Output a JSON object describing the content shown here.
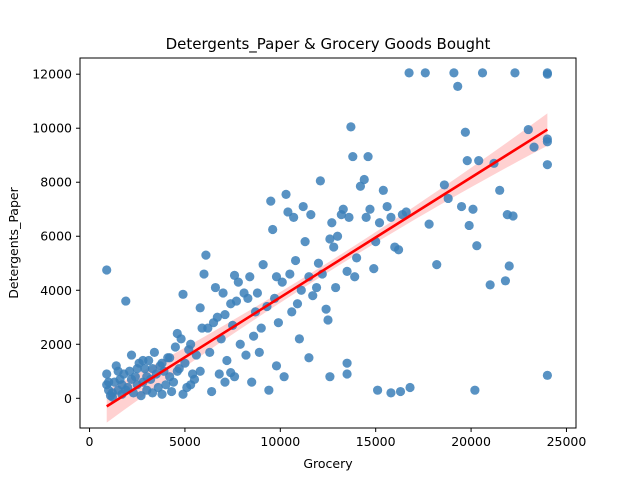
{
  "chart_data": {
    "type": "scatter",
    "title": "Detergents_Paper & Grocery Goods Bought",
    "xlabel": "Grocery",
    "ylabel": "Detergents_Paper",
    "xlim": [
      -500,
      25500
    ],
    "ylim": [
      -1100,
      12600
    ],
    "xticks": [
      0,
      5000,
      10000,
      15000,
      20000,
      25000
    ],
    "xtick_labels": [
      "0",
      "5000",
      "10000",
      "15000",
      "20000",
      "25000"
    ],
    "yticks": [
      0,
      2000,
      4000,
      6000,
      8000,
      10000,
      12000
    ],
    "ytick_labels": [
      "0",
      "2000",
      "4000",
      "6000",
      "8000",
      "10000",
      "12000"
    ],
    "grid": false,
    "legend": "none",
    "colors": {
      "points": "#3b7fb9",
      "regression": "#ff0000",
      "ci_band": "#ffb3b3"
    },
    "regression": {
      "x": [
        900,
        24000
      ],
      "y": [
        -300,
        9950
      ],
      "ci_halfwidth": [
        180,
        600
      ]
    },
    "points": [
      [
        900,
        4750
      ],
      [
        1900,
        3600
      ],
      [
        900,
        900
      ],
      [
        900,
        500
      ],
      [
        1000,
        300
      ],
      [
        1100,
        100
      ],
      [
        1200,
        50
      ],
      [
        1300,
        600
      ],
      [
        1400,
        1200
      ],
      [
        1500,
        300
      ],
      [
        1600,
        700
      ],
      [
        1700,
        150
      ],
      [
        1800,
        900
      ],
      [
        2000,
        400
      ],
      [
        2100,
        1000
      ],
      [
        2200,
        1600
      ],
      [
        2300,
        200
      ],
      [
        2400,
        800
      ],
      [
        2500,
        500
      ],
      [
        2600,
        1300
      ],
      [
        2700,
        100
      ],
      [
        2800,
        600
      ],
      [
        2900,
        1100
      ],
      [
        3000,
        300
      ],
      [
        3100,
        1400
      ],
      [
        3200,
        700
      ],
      [
        3300,
        200
      ],
      [
        3400,
        1700
      ],
      [
        3500,
        900
      ],
      [
        3600,
        400
      ],
      [
        3700,
        1200
      ],
      [
        3800,
        150
      ],
      [
        3900,
        1000
      ],
      [
        4000,
        500
      ],
      [
        4100,
        1500
      ],
      [
        4200,
        800
      ],
      [
        4300,
        250
      ],
      [
        4400,
        600
      ],
      [
        4500,
        1900
      ],
      [
        4600,
        2400
      ],
      [
        4700,
        1100
      ],
      [
        4800,
        2200
      ],
      [
        4900,
        3850
      ],
      [
        5000,
        1300
      ],
      [
        5100,
        400
      ],
      [
        5200,
        1800
      ],
      [
        5300,
        2000
      ],
      [
        5400,
        900
      ],
      [
        5500,
        700
      ],
      [
        5600,
        1600
      ],
      [
        5800,
        3350
      ],
      [
        5900,
        2600
      ],
      [
        6000,
        4600
      ],
      [
        6100,
        5300
      ],
      [
        6200,
        2600
      ],
      [
        6300,
        1700
      ],
      [
        6500,
        2800
      ],
      [
        6600,
        4100
      ],
      [
        6700,
        3000
      ],
      [
        6800,
        900
      ],
      [
        6900,
        2200
      ],
      [
        7000,
        3900
      ],
      [
        7100,
        3100
      ],
      [
        7200,
        1400
      ],
      [
        7400,
        3500
      ],
      [
        7500,
        2700
      ],
      [
        7600,
        4550
      ],
      [
        7700,
        3600
      ],
      [
        7800,
        4300
      ],
      [
        7900,
        2000
      ],
      [
        8100,
        3900
      ],
      [
        8200,
        1600
      ],
      [
        8300,
        3700
      ],
      [
        8400,
        4500
      ],
      [
        8600,
        2300
      ],
      [
        8700,
        3200
      ],
      [
        8800,
        3900
      ],
      [
        8900,
        1700
      ],
      [
        9000,
        2600
      ],
      [
        9100,
        4950
      ],
      [
        9300,
        3400
      ],
      [
        9500,
        7300
      ],
      [
        9600,
        6250
      ],
      [
        9700,
        3700
      ],
      [
        9800,
        4500
      ],
      [
        9900,
        2800
      ],
      [
        10100,
        4300
      ],
      [
        10300,
        7550
      ],
      [
        10400,
        6900
      ],
      [
        10500,
        4600
      ],
      [
        10600,
        3200
      ],
      [
        10700,
        6700
      ],
      [
        10800,
        5100
      ],
      [
        10900,
        3500
      ],
      [
        11000,
        2200
      ],
      [
        11100,
        4000
      ],
      [
        11200,
        7100
      ],
      [
        11300,
        5800
      ],
      [
        11500,
        4500
      ],
      [
        11600,
        6800
      ],
      [
        11700,
        3800
      ],
      [
        11900,
        4100
      ],
      [
        12000,
        5000
      ],
      [
        12100,
        8050
      ],
      [
        12200,
        4600
      ],
      [
        12400,
        3300
      ],
      [
        12500,
        2900
      ],
      [
        12600,
        5900
      ],
      [
        12700,
        6500
      ],
      [
        12800,
        5600
      ],
      [
        12900,
        4100
      ],
      [
        13000,
        6000
      ],
      [
        13200,
        6800
      ],
      [
        13300,
        7000
      ],
      [
        13500,
        4700
      ],
      [
        13600,
        6700
      ],
      [
        13700,
        10050
      ],
      [
        13800,
        8950
      ],
      [
        13900,
        4500
      ],
      [
        14000,
        5200
      ],
      [
        14200,
        7850
      ],
      [
        14400,
        8100
      ],
      [
        14500,
        6700
      ],
      [
        14600,
        8950
      ],
      [
        14700,
        7000
      ],
      [
        14900,
        4800
      ],
      [
        15000,
        5800
      ],
      [
        15200,
        6500
      ],
      [
        15400,
        7700
      ],
      [
        15600,
        7100
      ],
      [
        15800,
        6700
      ],
      [
        16000,
        5600
      ],
      [
        16200,
        5500
      ],
      [
        16400,
        6800
      ],
      [
        16600,
        6900
      ],
      [
        16750,
        12050
      ],
      [
        17600,
        12050
      ],
      [
        17800,
        6450
      ],
      [
        18200,
        4950
      ],
      [
        18600,
        7900
      ],
      [
        18800,
        7400
      ],
      [
        19100,
        12050
      ],
      [
        19300,
        11550
      ],
      [
        19500,
        7100
      ],
      [
        19700,
        9850
      ],
      [
        19800,
        8800
      ],
      [
        19900,
        6400
      ],
      [
        20100,
        7000
      ],
      [
        20300,
        5650
      ],
      [
        20400,
        8800
      ],
      [
        20600,
        12050
      ],
      [
        21000,
        4200
      ],
      [
        21200,
        8700
      ],
      [
        21500,
        7700
      ],
      [
        21800,
        4350
      ],
      [
        21900,
        6800
      ],
      [
        22000,
        4900
      ],
      [
        22200,
        6750
      ],
      [
        22300,
        12050
      ],
      [
        23000,
        9950
      ],
      [
        23300,
        9300
      ],
      [
        24000,
        12050
      ],
      [
        24000,
        12000
      ],
      [
        24000,
        9600
      ],
      [
        24000,
        9500
      ],
      [
        24000,
        8650
      ],
      [
        24000,
        850
      ],
      [
        13500,
        1300
      ],
      [
        13500,
        900
      ],
      [
        15100,
        300
      ],
      [
        15800,
        200
      ],
      [
        16300,
        250
      ],
      [
        16800,
        400
      ],
      [
        20200,
        300
      ],
      [
        10200,
        800
      ],
      [
        12600,
        800
      ],
      [
        11500,
        1500
      ],
      [
        9800,
        1200
      ],
      [
        7100,
        600
      ],
      [
        7400,
        950
      ],
      [
        7600,
        800
      ],
      [
        8500,
        600
      ],
      [
        9400,
        300
      ],
      [
        6400,
        250
      ],
      [
        5800,
        1000
      ],
      [
        5300,
        500
      ],
      [
        4900,
        150
      ],
      [
        4600,
        1000
      ],
      [
        4200,
        1500
      ],
      [
        3800,
        1300
      ],
      [
        3300,
        1100
      ],
      [
        3000,
        800
      ],
      [
        2800,
        1400
      ],
      [
        2500,
        1100
      ],
      [
        2200,
        700
      ],
      [
        1900,
        300
      ],
      [
        1700,
        500
      ],
      [
        1500,
        1000
      ],
      [
        1200,
        200
      ],
      [
        1000,
        600
      ]
    ]
  }
}
